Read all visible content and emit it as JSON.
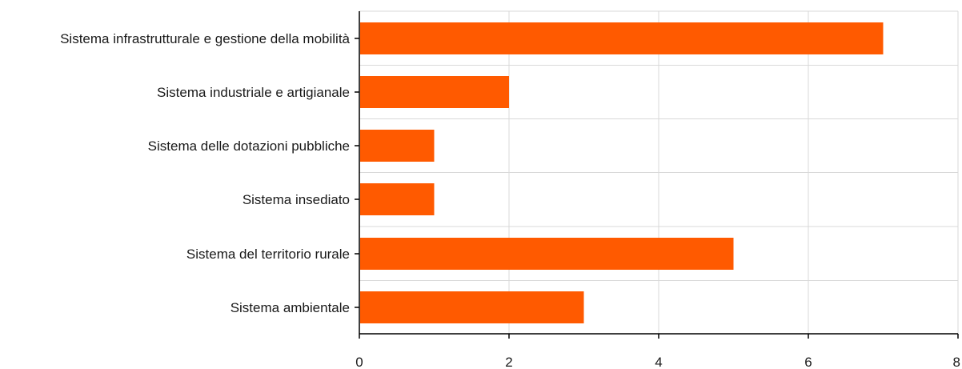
{
  "chart_data": {
    "type": "bar",
    "orientation": "horizontal",
    "title": "",
    "xlabel": "",
    "ylabel": "",
    "categories": [
      "Sistema infrastrutturale e gestione della mobilità",
      "Sistema industriale e artigianale",
      "Sistema delle dotazioni pubbliche",
      "Sistema insediato",
      "Sistema del territorio rurale",
      "Sistema ambientale"
    ],
    "values": [
      7,
      2,
      1,
      1,
      5,
      3
    ],
    "xlim": [
      0,
      8
    ],
    "xticks": [
      "0",
      "2",
      "4",
      "6",
      "8"
    ],
    "grid": true,
    "legend": "none",
    "colors": {
      "bar": "#ff5a00",
      "grid": "#d9d9d9",
      "axis": "#000000"
    }
  }
}
